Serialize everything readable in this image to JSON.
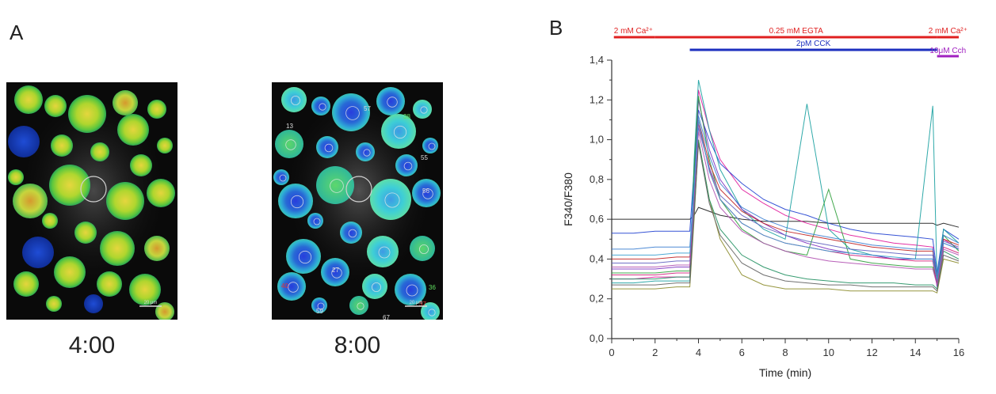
{
  "panel_a": {
    "letter": "A",
    "images": [
      {
        "time": "4:00",
        "scale_bar": "20 μm",
        "cell_labels": []
      },
      {
        "time": "8:00",
        "scale_bar": "20 μm",
        "cell_labels": [
          "57",
          "13",
          "55",
          "56",
          "40",
          "27",
          "59",
          "67",
          "37",
          "36",
          "38"
        ]
      }
    ]
  },
  "panel_b": {
    "letter": "B",
    "bars": [
      {
        "label": "2 mM Ca²⁺",
        "t_start": 0.1,
        "t_end": 2.0,
        "color": "#e02020",
        "row": "top",
        "label_pos": "left"
      },
      {
        "label": "0.25 mM EGTA",
        "t_start": 2.0,
        "t_end": 15.0,
        "color": "#e02020",
        "row": "top",
        "label_pos": "center"
      },
      {
        "label": "2 mM Ca²⁺",
        "t_start": 15.0,
        "t_end": 16.0,
        "color": "#e02020",
        "row": "top",
        "label_pos": "center"
      },
      {
        "label": "2pM CCK",
        "t_start": 3.6,
        "t_end": 15.0,
        "color": "#1c2fbf",
        "row": "middle",
        "label_pos": "center"
      },
      {
        "label": "10μM Cch",
        "t_start": 15.0,
        "t_end": 16.0,
        "color": "#a020c0",
        "row": "bottom",
        "label_pos": "center"
      }
    ]
  },
  "chart_data": {
    "type": "line",
    "xlabel": "Time (min)",
    "ylabel": "F340/F380",
    "xlim": [
      0,
      16
    ],
    "ylim": [
      0,
      1.4
    ],
    "xticks": [
      "0",
      "2",
      "4",
      "6",
      "8",
      "10",
      "12",
      "14",
      "16"
    ],
    "yticks": [
      "0,0",
      "0,2",
      "0,4",
      "0,6",
      "0,8",
      "1,0",
      "1,2",
      "1,4"
    ],
    "grid": false,
    "legend": "none",
    "colors": [
      "#1a1a1a",
      "#e0189a",
      "#2040d0",
      "#18a0a0",
      "#7b2fc0",
      "#2e9e3a",
      "#8b8b2a",
      "#c02020",
      "#3a7dd0",
      "#d0207a",
      "#209060",
      "#6060c0",
      "#b04fb0",
      "#3aa0d0",
      "#606060"
    ],
    "x": [
      0,
      1,
      2,
      3,
      3.6,
      3.8,
      4,
      4.5,
      5,
      6,
      7,
      8,
      9,
      10,
      11,
      12,
      13,
      14,
      14.8,
      15,
      15.3,
      16
    ],
    "series": [
      {
        "values": [
          0.6,
          0.6,
          0.6,
          0.6,
          0.6,
          0.62,
          0.66,
          0.64,
          0.62,
          0.6,
          0.59,
          0.59,
          0.59,
          0.58,
          0.58,
          0.58,
          0.58,
          0.58,
          0.58,
          0.57,
          0.58,
          0.56
        ]
      },
      {
        "values": [
          0.3,
          0.3,
          0.31,
          0.31,
          0.31,
          0.8,
          1.25,
          1.05,
          0.9,
          0.75,
          0.68,
          0.62,
          0.58,
          0.55,
          0.52,
          0.5,
          0.48,
          0.47,
          0.46,
          0.3,
          0.5,
          0.45
        ]
      },
      {
        "values": [
          0.53,
          0.53,
          0.54,
          0.54,
          0.54,
          0.85,
          1.15,
          1.0,
          0.88,
          0.78,
          0.7,
          0.65,
          0.62,
          0.58,
          0.55,
          0.53,
          0.52,
          0.51,
          0.5,
          0.33,
          0.55,
          0.5
        ]
      },
      {
        "values": [
          0.28,
          0.28,
          0.29,
          0.29,
          0.29,
          0.9,
          1.3,
          1.05,
          0.85,
          0.65,
          0.55,
          0.5,
          1.18,
          0.55,
          0.45,
          0.42,
          0.4,
          0.4,
          1.17,
          0.3,
          0.55,
          0.48
        ]
      },
      {
        "values": [
          0.35,
          0.35,
          0.35,
          0.36,
          0.36,
          0.75,
          1.2,
          0.95,
          0.8,
          0.65,
          0.58,
          0.52,
          0.48,
          0.45,
          0.43,
          0.42,
          0.4,
          0.4,
          0.4,
          0.26,
          0.48,
          0.45
        ]
      },
      {
        "values": [
          0.33,
          0.33,
          0.33,
          0.34,
          0.34,
          0.85,
          1.22,
          0.9,
          0.7,
          0.55,
          0.48,
          0.44,
          0.42,
          0.75,
          0.4,
          0.38,
          0.37,
          0.36,
          0.36,
          0.28,
          0.52,
          0.44
        ]
      },
      {
        "values": [
          0.25,
          0.25,
          0.25,
          0.26,
          0.26,
          0.6,
          1.0,
          0.7,
          0.5,
          0.32,
          0.27,
          0.25,
          0.25,
          0.25,
          0.24,
          0.24,
          0.24,
          0.24,
          0.24,
          0.23,
          0.4,
          0.38
        ]
      },
      {
        "values": [
          0.4,
          0.4,
          0.4,
          0.41,
          0.41,
          0.7,
          1.1,
          0.88,
          0.75,
          0.64,
          0.58,
          0.54,
          0.52,
          0.5,
          0.48,
          0.46,
          0.45,
          0.44,
          0.44,
          0.3,
          0.5,
          0.47
        ]
      },
      {
        "values": [
          0.45,
          0.45,
          0.46,
          0.46,
          0.46,
          0.78,
          1.12,
          0.92,
          0.78,
          0.66,
          0.6,
          0.56,
          0.53,
          0.51,
          0.49,
          0.47,
          0.46,
          0.45,
          0.45,
          0.32,
          0.52,
          0.48
        ]
      },
      {
        "values": [
          0.32,
          0.32,
          0.32,
          0.33,
          0.33,
          0.72,
          1.08,
          0.85,
          0.7,
          0.58,
          0.52,
          0.48,
          0.46,
          0.44,
          0.42,
          0.41,
          0.4,
          0.39,
          0.39,
          0.27,
          0.46,
          0.43
        ]
      },
      {
        "values": [
          0.3,
          0.3,
          0.3,
          0.31,
          0.31,
          0.65,
          1.0,
          0.7,
          0.55,
          0.42,
          0.36,
          0.32,
          0.3,
          0.29,
          0.28,
          0.28,
          0.28,
          0.27,
          0.27,
          0.25,
          0.44,
          0.4
        ]
      },
      {
        "values": [
          0.38,
          0.38,
          0.38,
          0.39,
          0.39,
          0.74,
          1.06,
          0.86,
          0.72,
          0.62,
          0.56,
          0.52,
          0.49,
          0.47,
          0.45,
          0.44,
          0.43,
          0.42,
          0.42,
          0.29,
          0.49,
          0.46
        ]
      },
      {
        "values": [
          0.36,
          0.36,
          0.36,
          0.37,
          0.37,
          0.7,
          1.04,
          0.8,
          0.66,
          0.54,
          0.48,
          0.44,
          0.41,
          0.39,
          0.38,
          0.37,
          0.36,
          0.35,
          0.35,
          0.27,
          0.45,
          0.42
        ]
      },
      {
        "values": [
          0.42,
          0.42,
          0.42,
          0.43,
          0.43,
          0.76,
          1.1,
          0.84,
          0.7,
          0.58,
          0.52,
          0.48,
          0.46,
          0.44,
          0.43,
          0.42,
          0.41,
          0.4,
          0.4,
          0.3,
          0.48,
          0.45
        ]
      },
      {
        "values": [
          0.27,
          0.27,
          0.27,
          0.28,
          0.28,
          0.62,
          0.98,
          0.68,
          0.52,
          0.38,
          0.32,
          0.29,
          0.28,
          0.27,
          0.27,
          0.26,
          0.26,
          0.26,
          0.26,
          0.24,
          0.42,
          0.39
        ]
      }
    ]
  }
}
